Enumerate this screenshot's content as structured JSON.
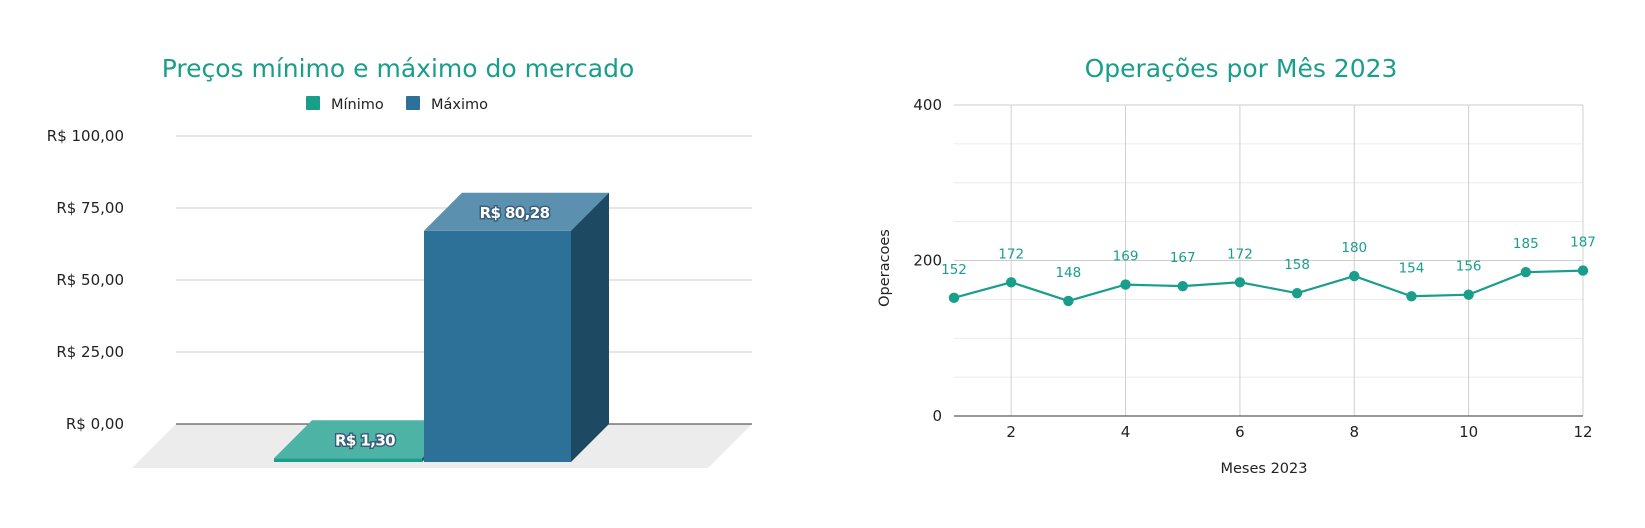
{
  "chart_data": [
    {
      "type": "bar",
      "title": "Preços mínimo e máximo do mercado",
      "categories": [
        ""
      ],
      "series": [
        {
          "name": "Mínimo",
          "values": [
            1.3
          ],
          "label": "R$ 1,30",
          "color": "#1a9e8c"
        },
        {
          "name": "Máximo",
          "values": [
            80.28
          ],
          "label": "R$ 80,28",
          "color": "#2d7199"
        }
      ],
      "ylim": [
        0,
        100
      ],
      "yticks": [
        {
          "value": 0,
          "label": "R$ 0,00"
        },
        {
          "value": 25,
          "label": "R$ 25,00"
        },
        {
          "value": 50,
          "label": "R$ 50,00"
        },
        {
          "value": 75,
          "label": "R$ 75,00"
        },
        {
          "value": 100,
          "label": "R$ 100,00"
        }
      ],
      "legend": "top",
      "grid": true,
      "style": "3d"
    },
    {
      "type": "line",
      "title": "Operações por Mês 2023",
      "xlabel": "Meses 2023",
      "ylabel": "Operacoes",
      "xlim": [
        1,
        12
      ],
      "ylim": [
        0,
        400
      ],
      "xticks": [
        2,
        4,
        6,
        8,
        10,
        12
      ],
      "yticks": [
        0,
        200,
        400
      ],
      "grid": true,
      "series": [
        {
          "color": "#1a9e8c",
          "x": [
            1,
            2,
            3,
            4,
            5,
            6,
            7,
            8,
            9,
            10,
            11,
            12
          ],
          "values": [
            152,
            172,
            148,
            169,
            167,
            172,
            158,
            180,
            154,
            156,
            185,
            187
          ]
        }
      ]
    }
  ]
}
